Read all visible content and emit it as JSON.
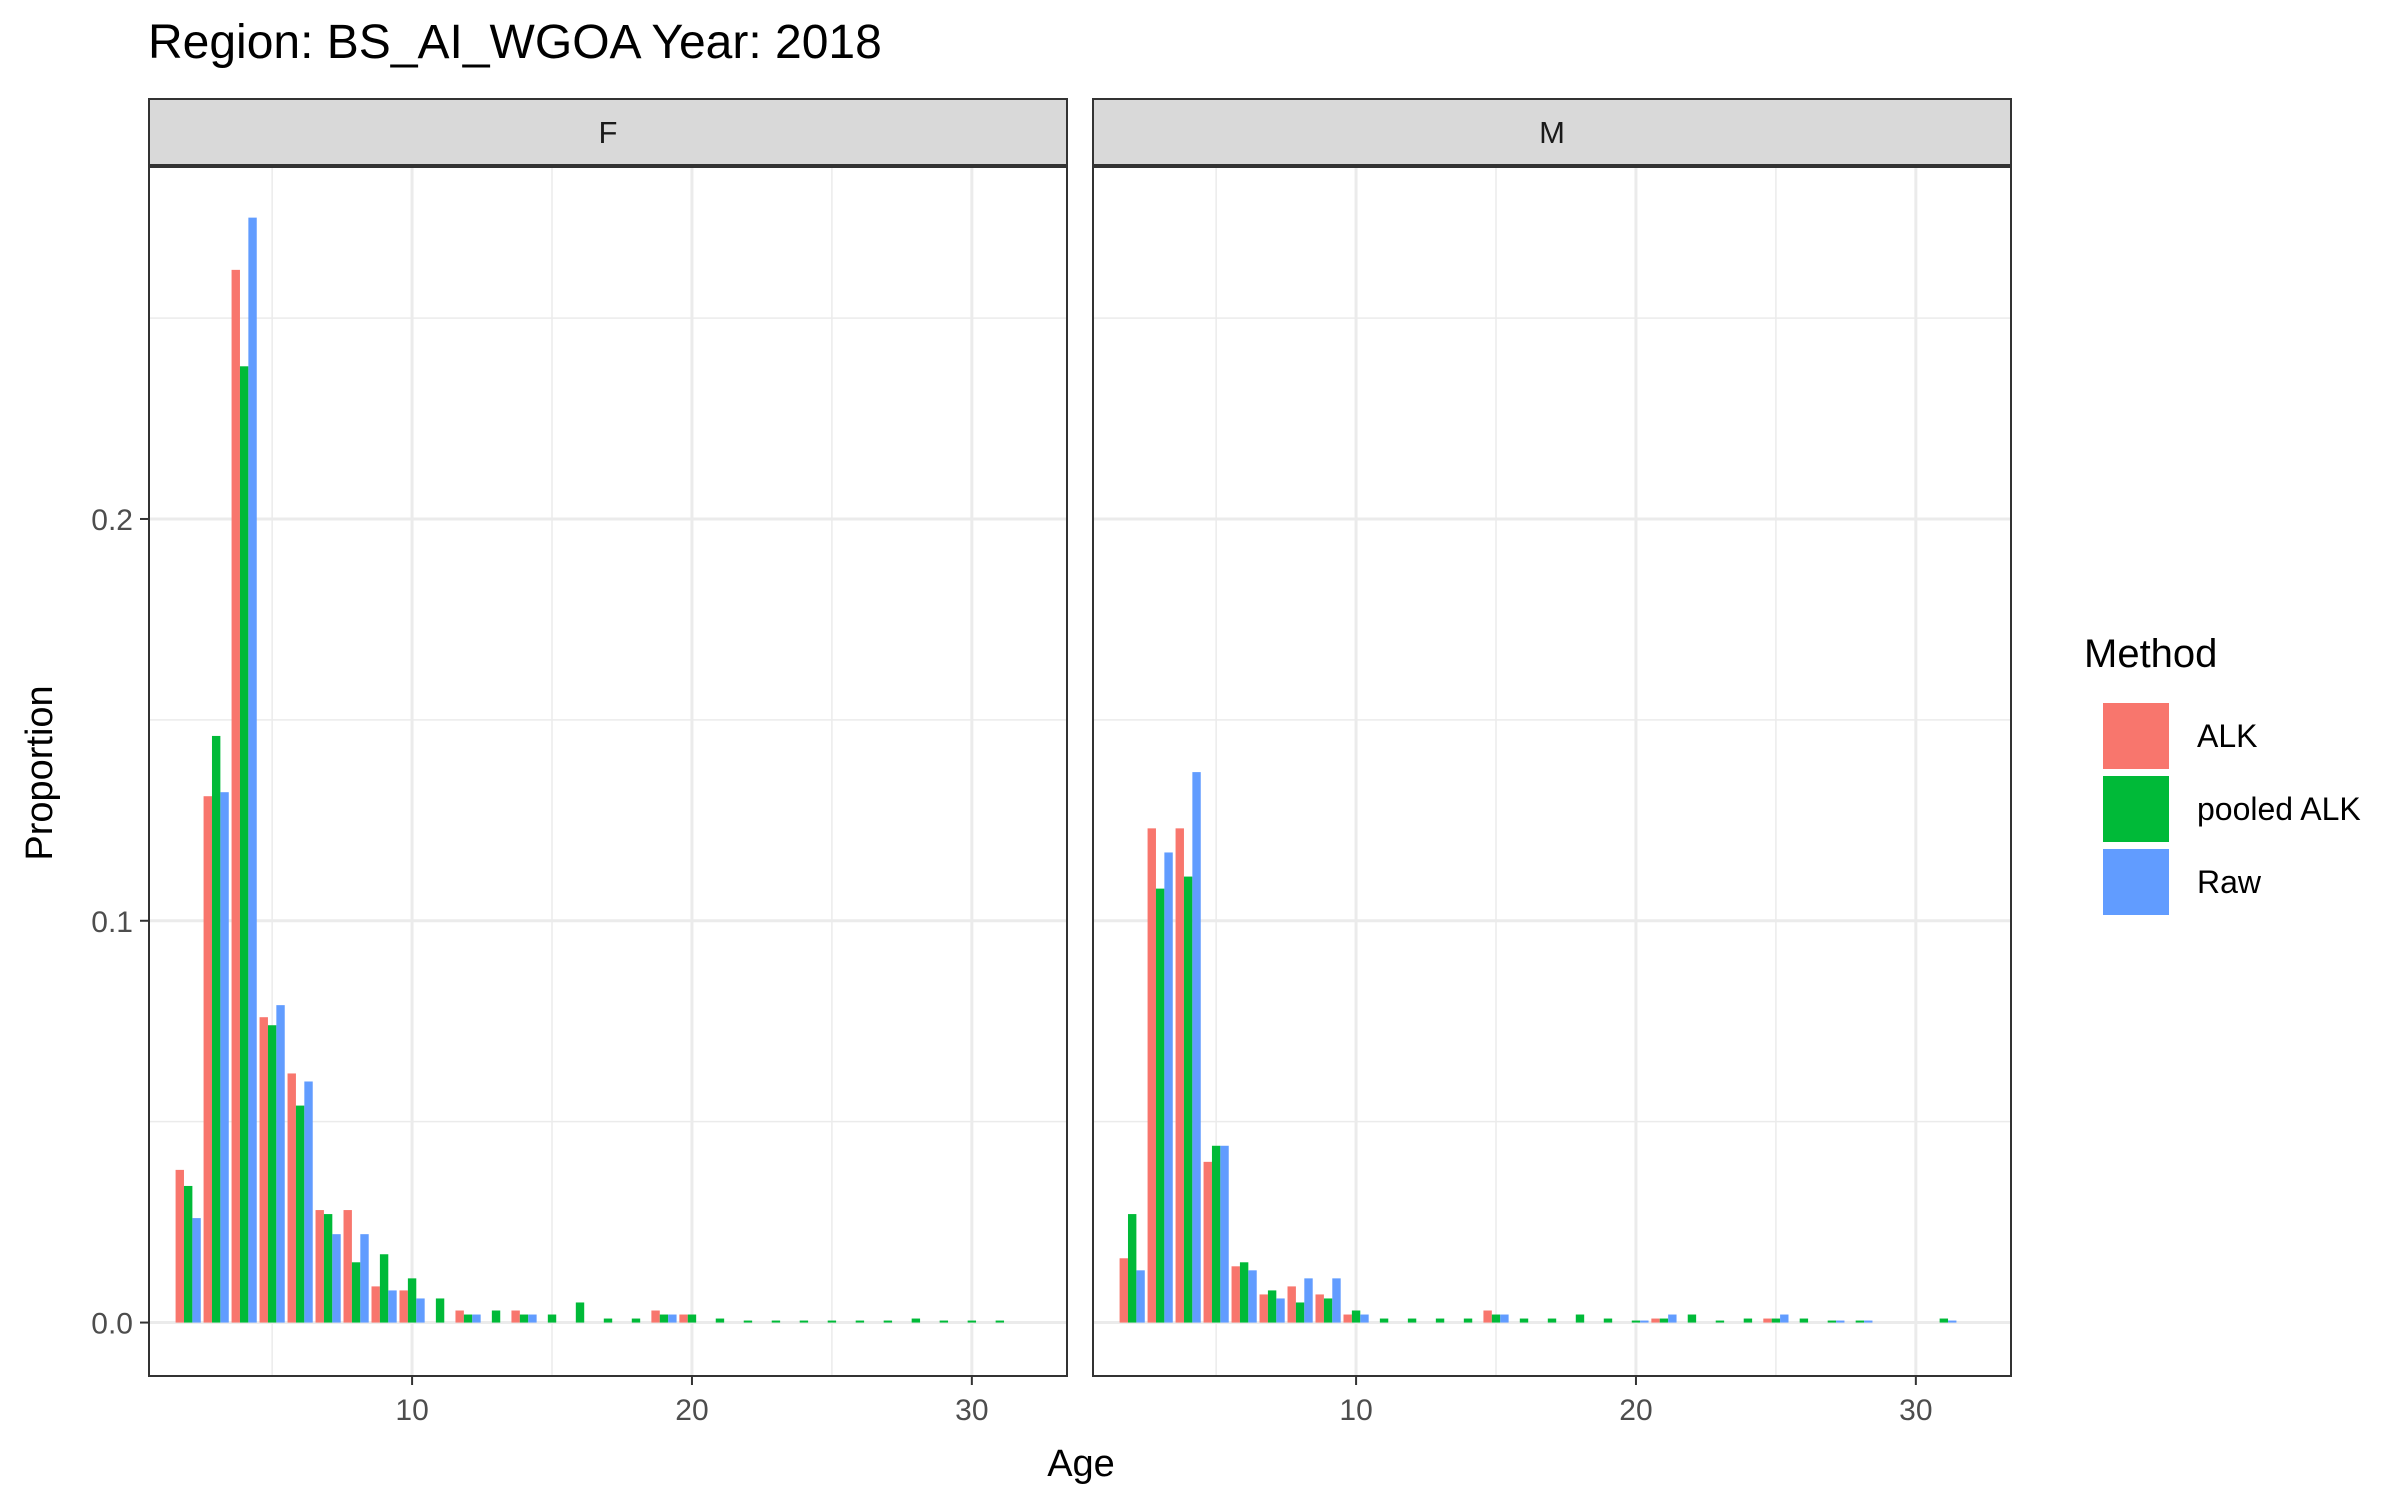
{
  "chart_data": {
    "type": "bar",
    "title": "Region: BS_AI_WGOA Year: 2018",
    "xlabel": "Age",
    "ylabel": "Proportion",
    "xlim": [
      0.6,
      33.4
    ],
    "ylim": [
      -0.0133,
      0.2876
    ],
    "x_ticks": [
      10,
      20,
      30
    ],
    "y_ticks": [
      0.0,
      0.1,
      0.2
    ],
    "y_tick_labels": [
      "0.0",
      "0.1",
      "0.2"
    ],
    "grid": true,
    "legend": {
      "title": "Method",
      "position": "right",
      "entries": [
        "ALK",
        "pooled ALK",
        "Raw"
      ]
    },
    "colors": {
      "ALK": "#F8766D",
      "pooled ALK": "#00BA38",
      "Raw": "#619CFF"
    },
    "facets": [
      {
        "label": "F",
        "series": [
          {
            "name": "ALK",
            "points": [
              [
                2,
                0.038
              ],
              [
                3,
                0.131
              ],
              [
                4,
                0.262
              ],
              [
                5,
                0.076
              ],
              [
                6,
                0.062
              ],
              [
                7,
                0.028
              ],
              [
                8,
                0.028
              ],
              [
                9,
                0.009
              ],
              [
                10,
                0.008
              ],
              [
                12,
                0.003
              ],
              [
                14,
                0.003
              ],
              [
                19,
                0.003
              ],
              [
                20,
                0.002
              ]
            ]
          },
          {
            "name": "pooled ALK",
            "points": [
              [
                2,
                0.034
              ],
              [
                3,
                0.146
              ],
              [
                4,
                0.238
              ],
              [
                5,
                0.074
              ],
              [
                6,
                0.054
              ],
              [
                7,
                0.027
              ],
              [
                8,
                0.015
              ],
              [
                9,
                0.017
              ],
              [
                10,
                0.011
              ],
              [
                11,
                0.006
              ],
              [
                12,
                0.002
              ],
              [
                13,
                0.003
              ],
              [
                14,
                0.002
              ],
              [
                15,
                0.002
              ],
              [
                16,
                0.005
              ],
              [
                17,
                0.001
              ],
              [
                18,
                0.001
              ],
              [
                19,
                0.002
              ],
              [
                20,
                0.002
              ],
              [
                21,
                0.001
              ],
              [
                22,
                0.0005
              ],
              [
                23,
                0.0005
              ],
              [
                24,
                0.0005
              ],
              [
                25,
                0.0005
              ],
              [
                26,
                0.0005
              ],
              [
                27,
                0.0005
              ],
              [
                28,
                0.001
              ],
              [
                29,
                0.0005
              ],
              [
                30,
                0.0005
              ],
              [
                31,
                0.0005
              ]
            ]
          },
          {
            "name": "Raw",
            "points": [
              [
                2,
                0.026
              ],
              [
                3,
                0.132
              ],
              [
                4,
                0.275
              ],
              [
                5,
                0.079
              ],
              [
                6,
                0.06
              ],
              [
                7,
                0.022
              ],
              [
                8,
                0.022
              ],
              [
                9,
                0.008
              ],
              [
                10,
                0.006
              ],
              [
                12,
                0.002
              ],
              [
                14,
                0.002
              ],
              [
                19,
                0.002
              ]
            ]
          }
        ]
      },
      {
        "label": "M",
        "series": [
          {
            "name": "ALK",
            "points": [
              [
                2,
                0.016
              ],
              [
                3,
                0.123
              ],
              [
                4,
                0.123
              ],
              [
                5,
                0.04
              ],
              [
                6,
                0.014
              ],
              [
                7,
                0.007
              ],
              [
                8,
                0.009
              ],
              [
                9,
                0.007
              ],
              [
                10,
                0.002
              ],
              [
                15,
                0.003
              ],
              [
                21,
                0.001
              ],
              [
                25,
                0.001
              ]
            ]
          },
          {
            "name": "pooled ALK",
            "points": [
              [
                2,
                0.027
              ],
              [
                3,
                0.108
              ],
              [
                4,
                0.111
              ],
              [
                5,
                0.044
              ],
              [
                6,
                0.015
              ],
              [
                7,
                0.008
              ],
              [
                8,
                0.005
              ],
              [
                9,
                0.006
              ],
              [
                10,
                0.003
              ],
              [
                11,
                0.001
              ],
              [
                12,
                0.001
              ],
              [
                13,
                0.001
              ],
              [
                14,
                0.001
              ],
              [
                15,
                0.002
              ],
              [
                16,
                0.001
              ],
              [
                17,
                0.001
              ],
              [
                18,
                0.002
              ],
              [
                19,
                0.001
              ],
              [
                20,
                0.0005
              ],
              [
                21,
                0.001
              ],
              [
                22,
                0.002
              ],
              [
                23,
                0.0005
              ],
              [
                24,
                0.001
              ],
              [
                25,
                0.001
              ],
              [
                26,
                0.001
              ],
              [
                27,
                0.0005
              ],
              [
                28,
                0.0005
              ],
              [
                31,
                0.001
              ]
            ]
          },
          {
            "name": "Raw",
            "points": [
              [
                2,
                0.013
              ],
              [
                3,
                0.117
              ],
              [
                4,
                0.137
              ],
              [
                5,
                0.044
              ],
              [
                6,
                0.013
              ],
              [
                7,
                0.006
              ],
              [
                8,
                0.011
              ],
              [
                9,
                0.011
              ],
              [
                10,
                0.002
              ],
              [
                15,
                0.002
              ],
              [
                20,
                0.0005
              ],
              [
                21,
                0.002
              ],
              [
                25,
                0.002
              ],
              [
                27,
                0.0005
              ],
              [
                28,
                0.0005
              ],
              [
                31,
                0.0005
              ]
            ]
          }
        ]
      }
    ]
  }
}
